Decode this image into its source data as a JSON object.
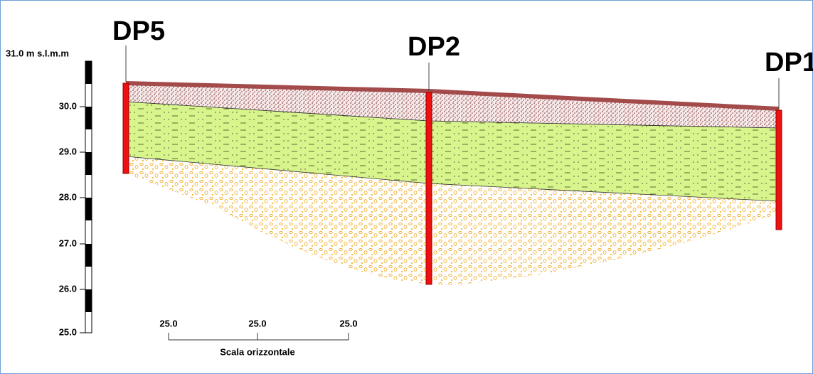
{
  "boreholes": [
    {
      "label": "DP5"
    },
    {
      "label": "DP2"
    },
    {
      "label": "DP1"
    }
  ],
  "elevation_scale": {
    "title": "31.0 m s.l.m.m",
    "labels": [
      "30.0",
      "29.0",
      "28.0",
      "27.0",
      "26.0",
      "25.0"
    ]
  },
  "horizontal_scale": {
    "labels": [
      "25.0",
      "25.0",
      "25.0"
    ],
    "title": "Scala orizzontale"
  }
}
